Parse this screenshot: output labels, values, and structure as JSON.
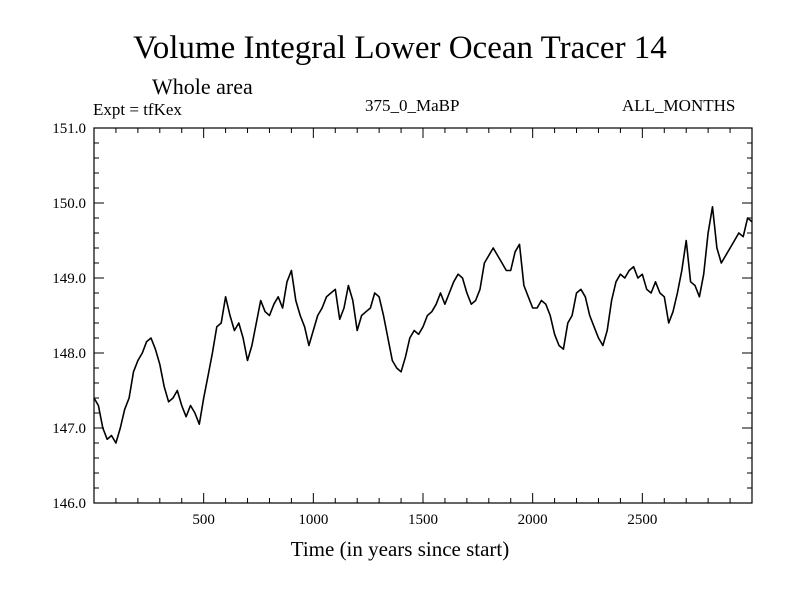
{
  "header": {
    "title": "Volume Integral Lower Ocean Tracer 14",
    "subtitle": "Whole area",
    "expt": "Expt = tfKex",
    "period": "375_0_MaBP",
    "months": "ALL_MONTHS"
  },
  "chart_data": {
    "type": "line",
    "title": "Volume Integral Lower Ocean Tracer 14",
    "subtitle": "Whole area",
    "xlabel": "Time (in years since start)",
    "ylabel": "",
    "xlim": [
      0,
      3000
    ],
    "ylim": [
      146.0,
      151.0
    ],
    "xticks": [
      500,
      1000,
      1500,
      2000,
      2500
    ],
    "xtick_labels": [
      "500",
      "1000",
      "1500",
      "2000",
      "2500"
    ],
    "yticks": [
      146.0,
      147.0,
      148.0,
      149.0,
      150.0,
      151.0
    ],
    "ytick_labels": [
      "146.0",
      "147.0",
      "148.0",
      "149.0",
      "150.0",
      "151.0"
    ],
    "grid": false,
    "line_color": "#000000",
    "series": [
      {
        "x": [
          0,
          20,
          40,
          60,
          80,
          100,
          120,
          140,
          160,
          180,
          200,
          220,
          240,
          260,
          280,
          300,
          320,
          340,
          360,
          380,
          400,
          420,
          440,
          460,
          480,
          500,
          520,
          540,
          560,
          580,
          600,
          620,
          640,
          660,
          680,
          700,
          720,
          740,
          760,
          780,
          800,
          820,
          840,
          860,
          880,
          900,
          920,
          940,
          960,
          980,
          1000,
          1020,
          1040,
          1060,
          1080,
          1100,
          1120,
          1140,
          1160,
          1180,
          1200,
          1220,
          1240,
          1260,
          1280,
          1300,
          1320,
          1340,
          1360,
          1380,
          1400,
          1420,
          1440,
          1460,
          1480,
          1500,
          1520,
          1540,
          1560,
          1580,
          1600,
          1620,
          1640,
          1660,
          1680,
          1700,
          1720,
          1740,
          1760,
          1780,
          1800,
          1820,
          1840,
          1860,
          1880,
          1900,
          1920,
          1940,
          1960,
          1980,
          2000,
          2020,
          2040,
          2060,
          2080,
          2100,
          2120,
          2140,
          2160,
          2180,
          2200,
          2220,
          2240,
          2260,
          2280,
          2300,
          2320,
          2340,
          2360,
          2380,
          2400,
          2420,
          2440,
          2460,
          2480,
          2500,
          2520,
          2540,
          2560,
          2580,
          2600,
          2620,
          2640,
          2660,
          2680,
          2700,
          2720,
          2740,
          2760,
          2780,
          2800,
          2820,
          2840,
          2860,
          2880,
          2900,
          2920,
          2940,
          2960,
          2980,
          3000
        ],
        "y": [
          147.4,
          147.3,
          147.0,
          146.85,
          146.9,
          146.8,
          147.0,
          147.25,
          147.4,
          147.75,
          147.9,
          148.0,
          148.15,
          148.2,
          148.05,
          147.85,
          147.55,
          147.35,
          147.4,
          147.5,
          147.3,
          147.15,
          147.3,
          147.2,
          147.05,
          147.4,
          147.7,
          148.0,
          148.35,
          148.4,
          148.75,
          148.5,
          148.3,
          148.4,
          148.2,
          147.9,
          148.1,
          148.4,
          148.7,
          148.55,
          148.5,
          148.65,
          148.75,
          148.6,
          148.95,
          149.1,
          148.7,
          148.5,
          148.35,
          148.1,
          148.3,
          148.5,
          148.6,
          148.75,
          148.8,
          148.85,
          148.45,
          148.6,
          148.9,
          148.7,
          148.3,
          148.5,
          148.55,
          148.6,
          148.8,
          148.75,
          148.5,
          148.2,
          147.9,
          147.8,
          147.75,
          147.95,
          148.2,
          148.3,
          148.25,
          148.35,
          148.5,
          148.55,
          148.65,
          148.8,
          148.65,
          148.8,
          148.95,
          149.05,
          149.0,
          148.8,
          148.65,
          148.7,
          148.85,
          149.2,
          149.3,
          149.4,
          149.3,
          149.2,
          149.1,
          149.1,
          149.35,
          149.45,
          148.9,
          148.75,
          148.6,
          148.6,
          148.7,
          148.65,
          148.5,
          148.25,
          148.1,
          148.05,
          148.4,
          148.5,
          148.8,
          148.85,
          148.75,
          148.5,
          148.35,
          148.2,
          148.1,
          148.3,
          148.7,
          148.95,
          149.05,
          149.0,
          149.1,
          149.15,
          149.0,
          149.05,
          148.85,
          148.8,
          148.95,
          148.8,
          148.75,
          148.4,
          148.55,
          148.8,
          149.1,
          149.5,
          148.95,
          148.9,
          148.75,
          149.05,
          149.6,
          149.95,
          149.4,
          149.2,
          149.3,
          149.4,
          149.5,
          149.6,
          149.55,
          149.8,
          149.75
        ]
      }
    ]
  }
}
